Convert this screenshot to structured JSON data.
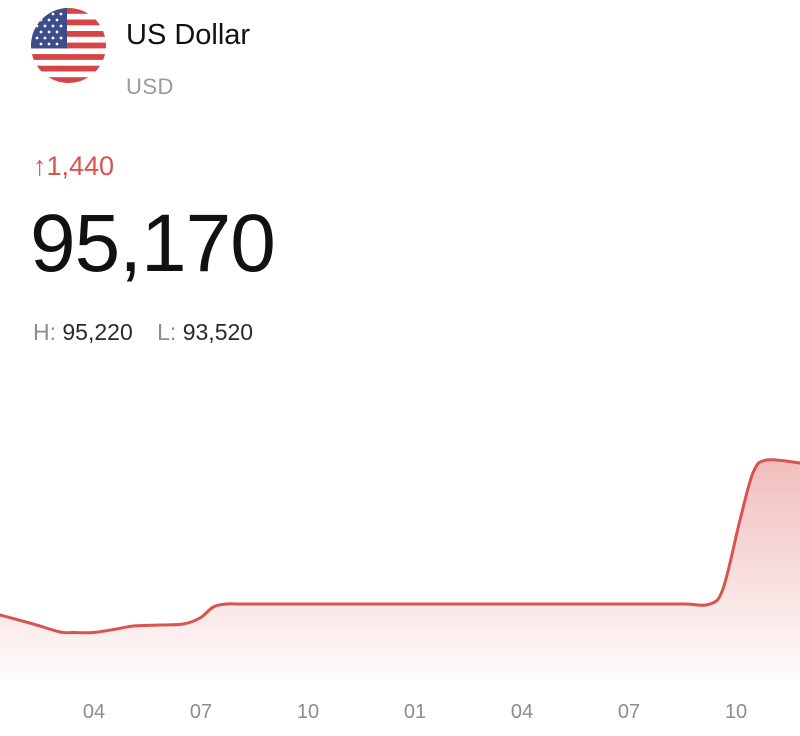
{
  "currency": {
    "name": "US Dollar",
    "code": "USD",
    "flag_icon": "us-flag-icon"
  },
  "quote": {
    "change_arrow": "↑",
    "change": "1,440",
    "price": "95,170",
    "high_label": "H:",
    "high": "95,220",
    "low_label": "L:",
    "low": "93,520"
  },
  "colors": {
    "accent_red": "#d9534f",
    "line": "#d9534f",
    "muted": "#8d8d8d"
  },
  "chart_data": {
    "type": "area",
    "title": "",
    "xlabel": "",
    "ylabel": "",
    "x_tick_labels": [
      "04",
      "07",
      "10",
      "01",
      "04",
      "07",
      "10"
    ],
    "x_range": [
      0,
      24
    ],
    "ylim": [
      93000,
      96000
    ],
    "grid": false,
    "legend": "none",
    "series": [
      {
        "x": [
          0,
          1,
          1.8,
          2.2,
          2.8,
          3.5,
          4.0,
          4.8,
          5.5,
          6.0,
          6.4,
          6.8,
          7.2,
          8.0,
          10,
          13,
          16,
          19,
          20.5,
          21.3,
          21.7,
          22.2,
          22.6,
          23.0,
          24
        ],
        "values": [
          93650,
          93560,
          93480,
          93475,
          93475,
          93510,
          93540,
          93550,
          93560,
          93620,
          93730,
          93760,
          93760,
          93760,
          93760,
          93760,
          93760,
          93760,
          93760,
          93760,
          93920,
          94600,
          95080,
          95200,
          95170
        ]
      }
    ]
  }
}
